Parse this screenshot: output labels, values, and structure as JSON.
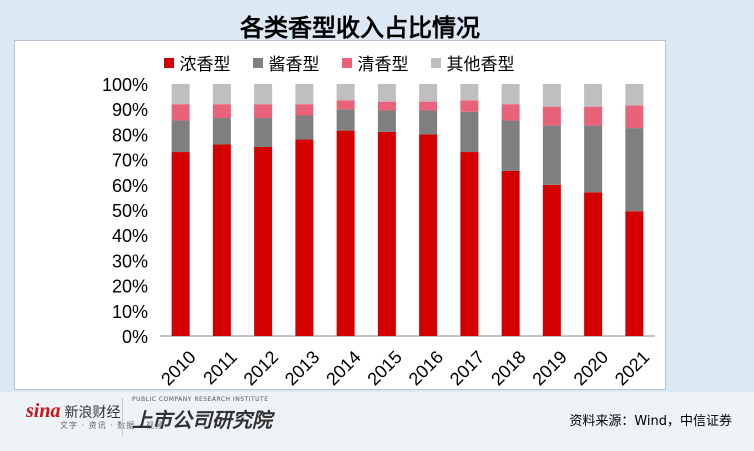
{
  "chart_data": {
    "type": "bar",
    "stacked": true,
    "title": "各类香型收入占比情况",
    "categories": [
      "2010",
      "2011",
      "2012",
      "2013",
      "2014",
      "2015",
      "2016",
      "2017",
      "2018",
      "2019",
      "2020",
      "2021"
    ],
    "series": [
      {
        "name": "浓香型",
        "color": "#d40000",
        "values": [
          73,
          76,
          75,
          78,
          81.5,
          81,
          80,
          73,
          65.5,
          60,
          57,
          49.5
        ]
      },
      {
        "name": "酱香型",
        "color": "#7f7f7f",
        "values": [
          12.5,
          10.5,
          11.5,
          9.5,
          8.5,
          8.5,
          9.5,
          16,
          20,
          23.5,
          26.5,
          33
        ]
      },
      {
        "name": "清香型",
        "color": "#e8627a",
        "values": [
          6.5,
          5.5,
          5.5,
          4.5,
          3.5,
          3.5,
          3.5,
          4.5,
          6.5,
          7.5,
          7.5,
          9
        ]
      },
      {
        "name": "其他香型",
        "color": "#bfbfbf",
        "values": [
          8,
          8,
          8,
          8,
          6.5,
          7,
          7,
          6.5,
          8,
          9,
          9,
          8.5
        ]
      }
    ],
    "yticks": [
      "0%",
      "10%",
      "20%",
      "30%",
      "40%",
      "50%",
      "60%",
      "70%",
      "80%",
      "90%",
      "100%"
    ],
    "ylim": [
      0,
      100
    ],
    "xlabel": "",
    "ylabel": "",
    "legend_position": "top"
  },
  "footer": {
    "sina_mark": "sina",
    "sina_name": "新浪财经",
    "sina_sub": "文字 · 资讯 · 数据 · 视频",
    "inst_en": "PUBLIC COMPANY RESEARCH INSTITUTE",
    "inst_cn": "上市公司研究院",
    "source": "资料来源：Wind，中信证券"
  }
}
